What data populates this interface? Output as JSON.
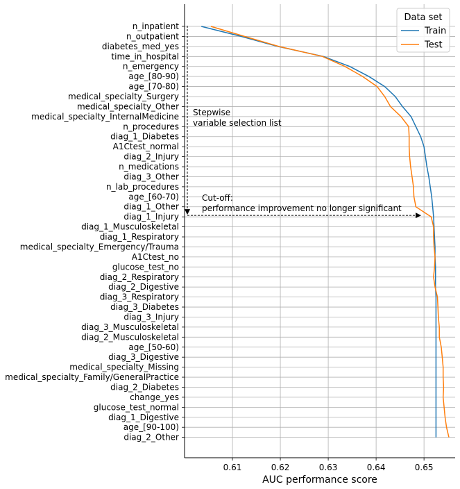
{
  "chart_data": {
    "type": "line",
    "orientation": "horizontal",
    "xlabel": "AUC performance score",
    "ylabel": "",
    "xlim": [
      0.6,
      0.6565
    ],
    "xticks": [
      0.61,
      0.62,
      0.63,
      0.64,
      0.65
    ],
    "xtick_labels": [
      "0.61",
      "0.62",
      "0.63",
      "0.64",
      "0.65"
    ],
    "grid": true,
    "legend": {
      "title": "Data set",
      "position": "top-right"
    },
    "categories": [
      "n_inpatient",
      "n_outpatient",
      "diabetes_med_yes",
      "time_in_hospital",
      "n_emergency",
      "age_[80-90)",
      "age_[70-80)",
      "medical_specialty_Surgery",
      "medical_specialty_Other",
      "medical_specialty_InternalMedicine",
      "n_procedures",
      "diag_1_Diabetes",
      "A1Ctest_normal",
      "diag_2_Injury",
      "n_medications",
      "diag_3_Other",
      "n_lab_procedures",
      "age_[60-70)",
      "diag_1_Other",
      "diag_1_Injury",
      "diag_1_Musculoskeletal",
      "diag_1_Respiratory",
      "medical_specialty_Emergency/Trauma",
      "A1Ctest_no",
      "glucose_test_no",
      "diag_2_Respiratory",
      "diag_2_Digestive",
      "diag_3_Respiratory",
      "diag_3_Diabetes",
      "diag_3_Injury",
      "diag_3_Musculoskeletal",
      "diag_2_Musculoskeletal",
      "age_[50-60)",
      "diag_3_Digestive",
      "medical_specialty_Missing",
      "medical_specialty_Family/GeneralPractice",
      "diag_2_Diabetes",
      "change_yes",
      "glucose_test_normal",
      "diag_1_Digestive",
      "age_[90-100)",
      "diag_2_Other"
    ],
    "series": [
      {
        "name": "Train",
        "color": "#1f77b4",
        "values": [
          0.6035,
          0.6118,
          0.6195,
          0.629,
          0.6345,
          0.6385,
          0.6418,
          0.644,
          0.6455,
          0.6473,
          0.6483,
          0.6493,
          0.65,
          0.6503,
          0.6506,
          0.651,
          0.6513,
          0.6516,
          0.6518,
          0.652,
          0.6521,
          0.6522,
          0.6523,
          0.6523,
          0.6524,
          0.6524,
          0.6524,
          0.6525,
          0.6525,
          0.6525,
          0.6525,
          0.6525,
          0.6525,
          0.6525,
          0.6525,
          0.6525,
          0.6525,
          0.6525,
          0.6525,
          0.6525,
          0.6525,
          0.6525
        ]
      },
      {
        "name": "Test",
        "color": "#ff7f0e",
        "values": [
          0.6055,
          0.6125,
          0.6197,
          0.6288,
          0.6335,
          0.6372,
          0.6402,
          0.6418,
          0.643,
          0.6452,
          0.6468,
          0.6469,
          0.6469,
          0.647,
          0.6472,
          0.6475,
          0.6478,
          0.6479,
          0.6483,
          0.6515,
          0.652,
          0.652,
          0.6521,
          0.6523,
          0.6522,
          0.652,
          0.6523,
          0.6528,
          0.6529,
          0.653,
          0.6532,
          0.6532,
          0.6536,
          0.6538,
          0.654,
          0.654,
          0.6541,
          0.654,
          0.6542,
          0.6544,
          0.6547,
          0.6552
        ]
      }
    ],
    "annotations": [
      {
        "lines": [
          "Stepwise",
          "variable selection list"
        ]
      },
      {
        "lines": [
          "Cut-off:",
          "performance improvement no longer significant"
        ]
      }
    ],
    "cutoff_index": 19
  }
}
